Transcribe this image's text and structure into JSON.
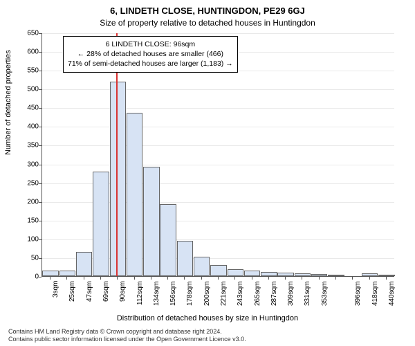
{
  "title_line1": "6, LINDETH CLOSE, HUNTINGDON, PE29 6GJ",
  "title_line2": "Size of property relative to detached houses in Huntingdon",
  "ylabel": "Number of detached properties",
  "xlabel": "Distribution of detached houses by size in Huntingdon",
  "chart": {
    "type": "histogram",
    "ylim": [
      0,
      650
    ],
    "ytick_step": 50,
    "bar_fill": "#d7e3f4",
    "bar_border": "#666666",
    "grid_color": "#e9e9e9",
    "axis_color": "#555555",
    "background_color": "#ffffff",
    "marker_color": "#d93333",
    "marker_x_index": 4.4,
    "x_labels": [
      "3sqm",
      "25sqm",
      "47sqm",
      "69sqm",
      "90sqm",
      "112sqm",
      "134sqm",
      "156sqm",
      "178sqm",
      "200sqm",
      "221sqm",
      "243sqm",
      "265sqm",
      "287sqm",
      "309sqm",
      "331sqm",
      "353sqm",
      "",
      "396sqm",
      "418sqm",
      "440sqm"
    ],
    "values": [
      14,
      14,
      65,
      278,
      518,
      435,
      292,
      192,
      95,
      52,
      30,
      18,
      15,
      12,
      10,
      8,
      5,
      4,
      0,
      8,
      3
    ]
  },
  "annotation": {
    "line1": "6 LINDETH CLOSE: 96sqm",
    "line2": "← 28% of detached houses are smaller (466)",
    "line3": "71% of semi-detached houses are larger (1,183) →"
  },
  "footer": {
    "line1": "Contains HM Land Registry data © Crown copyright and database right 2024.",
    "line2": "Contains public sector information licensed under the Open Government Licence v3.0."
  },
  "fonts": {
    "title_size_pt": 13,
    "subtitle_size_pt": 12,
    "axis_label_size_pt": 11,
    "tick_size_pt": 10,
    "annotation_size_pt": 10.5,
    "footer_size_pt": 9
  }
}
